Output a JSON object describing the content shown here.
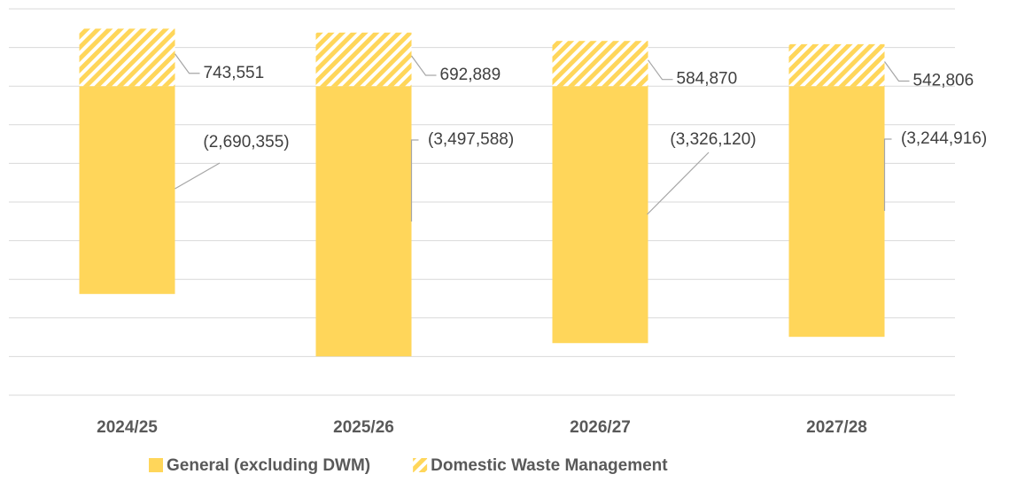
{
  "chart_data": {
    "type": "stacked_bar",
    "categories": [
      "2024/25",
      "2025/26",
      "2026/27",
      "2027/28"
    ],
    "series": [
      {
        "name": "General (excluding DWM)",
        "color": "#ffd65a",
        "pattern": "solid",
        "values": [
          -2690355,
          -3497588,
          -3326120,
          -3244916
        ],
        "value_labels": [
          "(2,690,355)",
          "(3,497,588)",
          "(3,326,120)",
          "(3,244,916)"
        ]
      },
      {
        "name": "Domestic Waste Management",
        "color": "#ffd65a",
        "pattern": "hatch",
        "values": [
          743551,
          692889,
          584870,
          542806
        ],
        "value_labels": [
          "743,551",
          "692,889",
          "584,870",
          "542,806"
        ]
      }
    ],
    "ylim": [
      -4000000,
      1000000
    ],
    "yticks": [
      -4000000,
      -3500000,
      -3000000,
      -2500000,
      -2000000,
      -1500000,
      -1000000,
      -500000,
      0,
      500000,
      1000000
    ],
    "grid": true
  }
}
